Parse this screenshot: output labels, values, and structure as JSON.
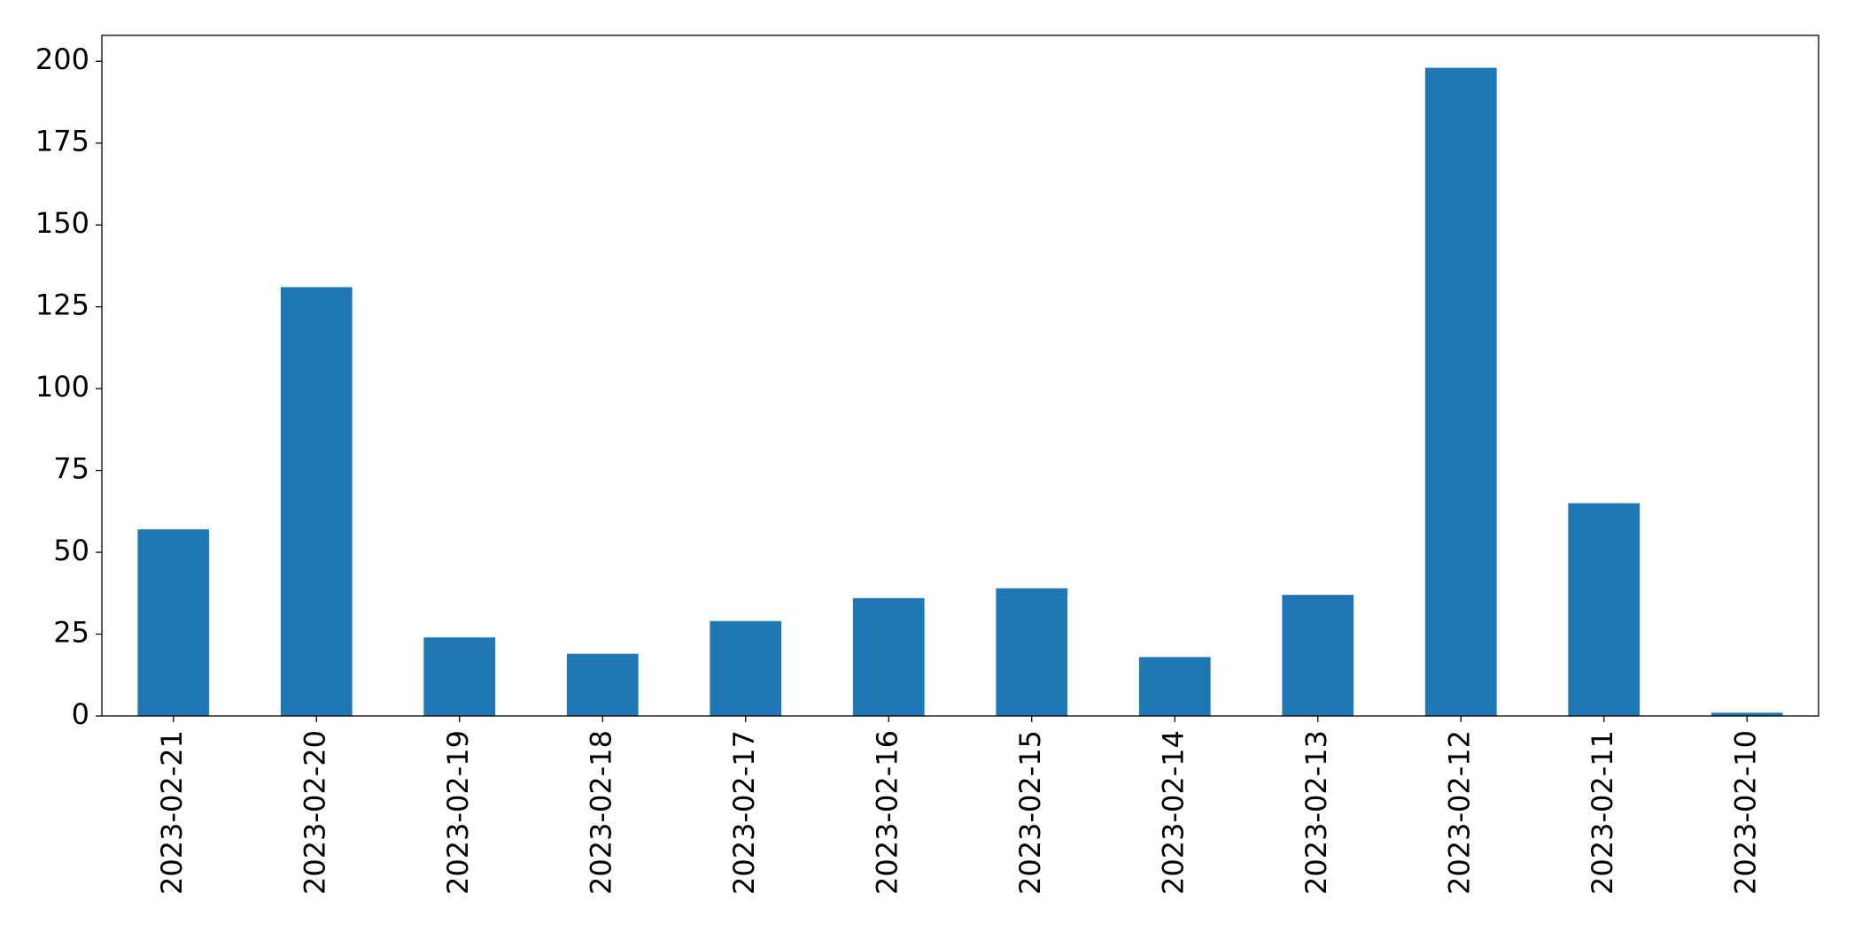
{
  "chart_data": {
    "type": "bar",
    "categories": [
      "2023-02-21",
      "2023-02-20",
      "2023-02-19",
      "2023-02-18",
      "2023-02-17",
      "2023-02-16",
      "2023-02-15",
      "2023-02-14",
      "2023-02-13",
      "2023-02-12",
      "2023-02-11",
      "2023-02-10"
    ],
    "values": [
      57,
      131,
      24,
      19,
      29,
      36,
      39,
      18,
      37,
      198,
      65,
      1
    ],
    "color": "#1f77b4",
    "ylim": [
      0,
      207.9
    ],
    "yticks": [
      0,
      25,
      50,
      75,
      100,
      125,
      150,
      175,
      200
    ],
    "grid": false
  }
}
